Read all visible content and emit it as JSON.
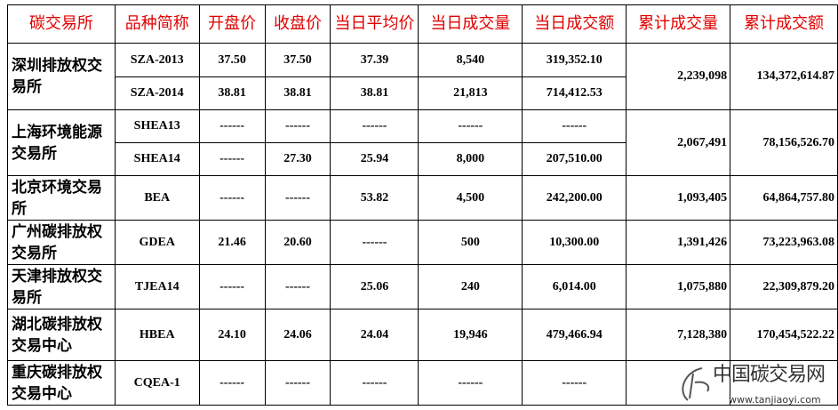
{
  "headers": [
    "碳交易所",
    "品种简称",
    "开盘价",
    "收盘价",
    "当日平均价",
    "当日成交量",
    "当日成交额",
    "累计成交量",
    "累计成交额"
  ],
  "colors": {
    "header_text": "#e00000"
  },
  "exchanges": [
    {
      "name": "深圳排放权交易所",
      "cum_volume": "2,239,098",
      "cum_amount": "134,372,614.87",
      "products": [
        {
          "code": "SZA-2013",
          "open": "37.50",
          "close": "37.50",
          "avg": "37.39",
          "volume": "8,540",
          "amount": "319,352.10"
        },
        {
          "code": "SZA-2014",
          "open": "38.81",
          "close": "38.81",
          "avg": "38.81",
          "volume": "21,813",
          "amount": "714,412.53"
        }
      ]
    },
    {
      "name": "上海环境能源交易所",
      "cum_volume": "2,067,491",
      "cum_amount": "78,156,526.70",
      "products": [
        {
          "code": "SHEA13",
          "open": "------",
          "close": "------",
          "avg": "------",
          "volume": "------",
          "amount": "------"
        },
        {
          "code": "SHEA14",
          "open": "------",
          "close": "27.30",
          "avg": "25.94",
          "volume": "8,000",
          "amount": "207,510.00"
        }
      ]
    },
    {
      "name": "北京环境交易所",
      "cum_volume": "1,093,405",
      "cum_amount": "64,864,757.80",
      "products": [
        {
          "code": "BEA",
          "open": "------",
          "close": "------",
          "avg": "53.82",
          "volume": "4,500",
          "amount": "242,200.00"
        }
      ]
    },
    {
      "name": "广州碳排放权交易所",
      "cum_volume": "1,391,426",
      "cum_amount": "73,223,963.08",
      "products": [
        {
          "code": "GDEA",
          "open": "21.46",
          "close": "20.60",
          "avg": "------",
          "volume": "500",
          "amount": "10,300.00"
        }
      ]
    },
    {
      "name": "天津排放权交易所",
      "cum_volume": "1,075,880",
      "cum_amount": "22,309,879.20",
      "products": [
        {
          "code": "TJEA14",
          "open": "------",
          "close": "------",
          "avg": "25.06",
          "volume": "240",
          "amount": "6,014.00"
        }
      ]
    },
    {
      "name": "湖北碳排放权交易中心",
      "cum_volume": "7,128,380",
      "cum_amount": "170,454,522.22",
      "products": [
        {
          "code": "HBEA",
          "open": "24.10",
          "close": "24.06",
          "avg": "24.04",
          "volume": "19,946",
          "amount": "479,466.94"
        }
      ]
    },
    {
      "name": "重庆碳排放权交易中心",
      "cum_volume": "",
      "cum_amount": "",
      "products": [
        {
          "code": "CQEA-1",
          "open": "------",
          "close": "------",
          "avg": "------",
          "volume": "------",
          "amount": "------"
        }
      ]
    }
  ],
  "watermark": {
    "title": "中国碳交易网",
    "url": "www.tanjiaoyi.com"
  }
}
